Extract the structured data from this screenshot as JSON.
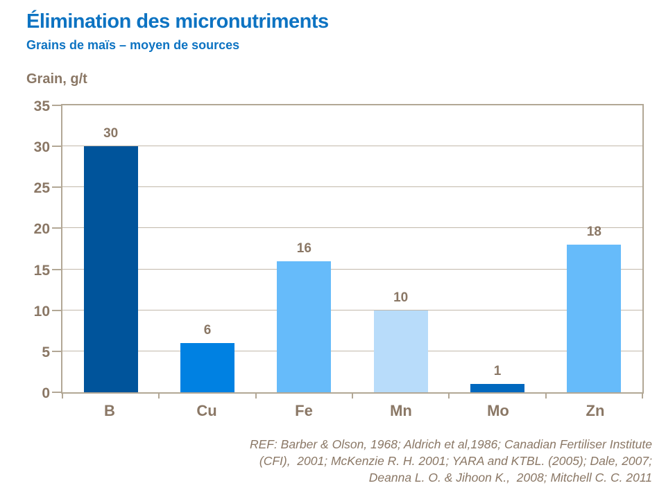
{
  "chart_data": {
    "type": "bar",
    "title": "Élimination des micronutriments",
    "subtitle": "Grains de maïs – moyen de sources",
    "ylabel": "Grain, g/t",
    "xlabel": "",
    "categories": [
      "B",
      "Cu",
      "Fe",
      "Mn",
      "Mo",
      "Zn"
    ],
    "values": [
      30,
      6,
      16,
      10,
      1,
      18
    ],
    "bar_colors": [
      "#00549b",
      "#0081e2",
      "#66bbfa",
      "#b8dcfa",
      "#0068be",
      "#66bbfa"
    ],
    "ylim": [
      0,
      35
    ],
    "yticks": [
      0,
      5,
      10,
      15,
      20,
      25,
      30,
      35
    ],
    "grid": true,
    "legend": false,
    "value_labels_shown": true
  },
  "footer": {
    "lines": [
      "REF: Barber & Olson, 1968; Aldrich et al,1986; Canadian Fertiliser Institute",
      "(CFI),  2001; McKenzie R. H. 2001; YARA and KTBL. (2005); Dale, 2007;",
      "Deanna L. O. & Jihoon K.,  2008; Mitchell C. C. 2011"
    ]
  },
  "colors": {
    "title_blue": "#0d73c2",
    "text_brown": "#8a7765",
    "grid_line": "#c2b8aa",
    "plot_border": "#b2a795"
  }
}
